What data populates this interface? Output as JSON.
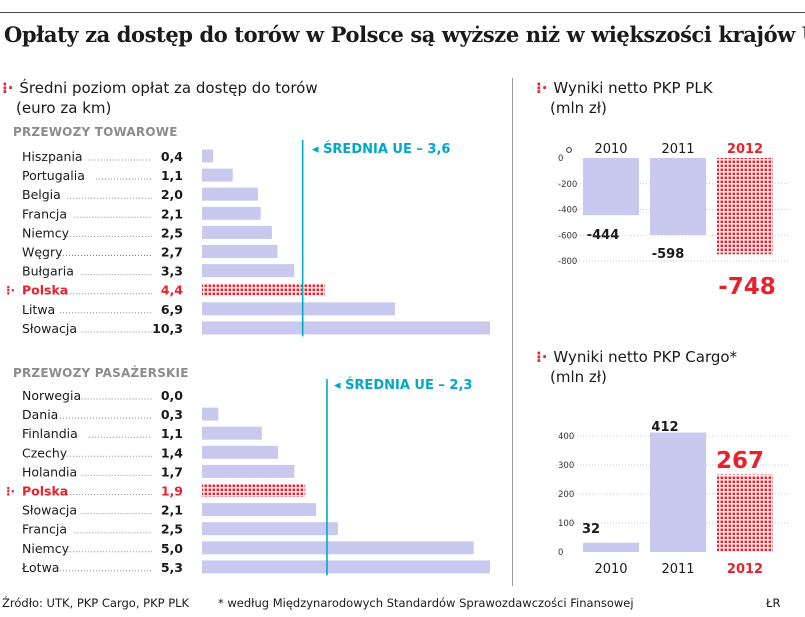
{
  "title": "Opłaty za dostęp do torów w Polsce są wyższe niż w większości krajów UE",
  "source": "Źródło: UTK, PKP Cargo, PKP PLK",
  "footnote": "* według Międzynarodowych Standardów Sprawozdawczości Finansowej",
  "credit": "ŁR",
  "colors": {
    "bar": "#c9c9ef",
    "highlight": "#e8222d",
    "avg": "#00a8c8"
  },
  "chart_data": [
    {
      "type": "bar",
      "orientation": "horizontal",
      "title_lines": [
        "Średni poziom opłat za dostęp do torów",
        "(euro za km)"
      ],
      "section": "PRZEWOZY TOWAROWE",
      "categories": [
        "Hiszpania",
        "Portugalia",
        "Belgia",
        "Francja",
        "Niemcy",
        "Węgry",
        "Bułgaria",
        "Polska",
        "Litwa",
        "Słowacja"
      ],
      "values": [
        0.4,
        1.1,
        2.0,
        2.1,
        2.5,
        2.7,
        3.3,
        4.4,
        6.9,
        10.3
      ],
      "value_labels": [
        "0,4",
        "1,1",
        "2,0",
        "2,1",
        "2,5",
        "2,7",
        "3,3",
        "4,4",
        "6,9",
        "10,3"
      ],
      "highlight": "Polska",
      "average_value": 3.6,
      "average_label": "ŚREDNIA UE – 3,6",
      "xlim": [
        0,
        10.3
      ]
    },
    {
      "type": "bar",
      "orientation": "horizontal",
      "section": "PRZEWOZY PASAŻERSKIE",
      "categories": [
        "Norwegia",
        "Dania",
        "Finlandia",
        "Czechy",
        "Holandia",
        "Polska",
        "Słowacja",
        "Francja",
        "Niemcy",
        "Łotwa"
      ],
      "values": [
        0.0,
        0.3,
        1.1,
        1.4,
        1.7,
        1.9,
        2.1,
        2.5,
        5.0,
        5.3
      ],
      "value_labels": [
        "0,0",
        "0,3",
        "1,1",
        "1,4",
        "1,7",
        "1,9",
        "2,1",
        "2,5",
        "5,0",
        "5,3"
      ],
      "highlight": "Polska",
      "average_value": 2.3,
      "average_label": "ŚREDNIA UE – 2,3",
      "xlim": [
        0,
        5.3
      ]
    },
    {
      "type": "bar",
      "title_lines": [
        "Wyniki netto PKP PLK",
        "(mln zł)"
      ],
      "categories": [
        "2010",
        "2011",
        "2012"
      ],
      "values": [
        -444,
        -598,
        -748
      ],
      "value_labels": [
        "-444",
        "-598",
        "-748"
      ],
      "highlight": "2012",
      "yticks": [
        0,
        -200,
        -400,
        -600,
        -800
      ],
      "ytick_labels": [
        "0",
        "-200",
        "-400",
        "-600",
        "-800"
      ],
      "ylim": [
        -800,
        0
      ]
    },
    {
      "type": "bar",
      "title_lines": [
        "Wyniki netto PKP Cargo*",
        "(mln zł)"
      ],
      "categories": [
        "2010",
        "2011",
        "2012"
      ],
      "values": [
        32,
        412,
        267
      ],
      "value_labels": [
        "32",
        "412",
        "267"
      ],
      "highlight": "2012",
      "yticks": [
        0,
        100,
        200,
        300,
        400
      ],
      "ytick_labels": [
        "0",
        "100",
        "200",
        "300",
        "400"
      ],
      "ylim": [
        0,
        400
      ]
    }
  ]
}
